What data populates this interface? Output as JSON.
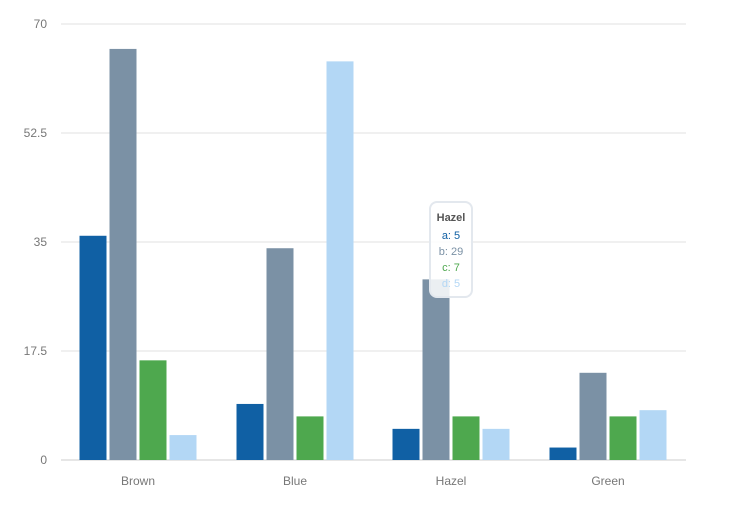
{
  "chart_data": {
    "type": "bar",
    "categories": [
      "Brown",
      "Blue",
      "Hazel",
      "Green"
    ],
    "series": [
      {
        "key": "a",
        "color": "#1060a4",
        "values": [
          36,
          9,
          5,
          2
        ]
      },
      {
        "key": "b",
        "color": "#7b91a5",
        "values": [
          66,
          34,
          29,
          14
        ]
      },
      {
        "key": "c",
        "color": "#4ea84e",
        "values": [
          16,
          7,
          7,
          7
        ]
      },
      {
        "key": "d",
        "color": "#b3d7f5",
        "values": [
          4,
          64,
          5,
          8
        ]
      }
    ],
    "yticks": [
      "0",
      "17.5",
      "35",
      "52.5",
      "70"
    ],
    "ylim": [
      0,
      70
    ],
    "grid": true,
    "title": "",
    "xlabel": "",
    "ylabel": ""
  },
  "tooltip": {
    "title": "Hazel",
    "lines": [
      {
        "text": "a: 5",
        "color": "#1060a4"
      },
      {
        "text": "b: 29",
        "color": "#7b91a5"
      },
      {
        "text": "c: 7",
        "color": "#4ea84e"
      },
      {
        "text": "d: 5",
        "color": "#b3d7f5"
      }
    ]
  }
}
